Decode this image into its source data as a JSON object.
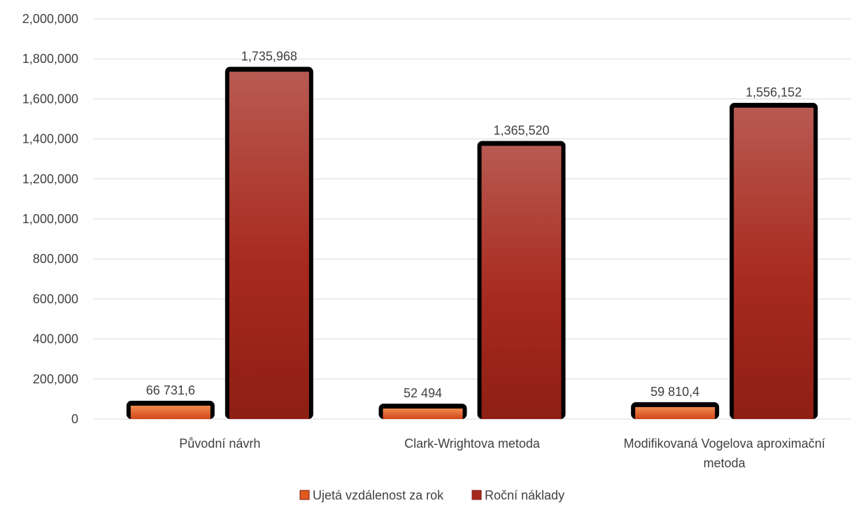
{
  "chart_data": {
    "type": "bar",
    "categories": [
      "Původní návrh",
      "Clark-Wrightova metoda",
      "Modifikovaná Vogelova aproximační metoda"
    ],
    "series": [
      {
        "name": "Ujetá vzdálenost za rok",
        "values": [
          66731.6,
          52494,
          59810.4
        ],
        "labels": [
          "66 731,6",
          "52 494",
          "59 810,4"
        ],
        "color": "#e25a1c"
      },
      {
        "name": "Roční náklady",
        "values": [
          1735968,
          1365520,
          1556152
        ],
        "labels": [
          "1,735,968",
          "1,365,520",
          "1,556,152"
        ],
        "color": "#a82a1e"
      }
    ],
    "yticks": [
      "0",
      "200,000",
      "400,000",
      "600,000",
      "800,000",
      "1,000,000",
      "1,200,000",
      "1,400,000",
      "1,600,000",
      "1,800,000",
      "2,000,000"
    ],
    "ylim": [
      0,
      2000000
    ],
    "grid": true,
    "legend_position": "bottom"
  }
}
